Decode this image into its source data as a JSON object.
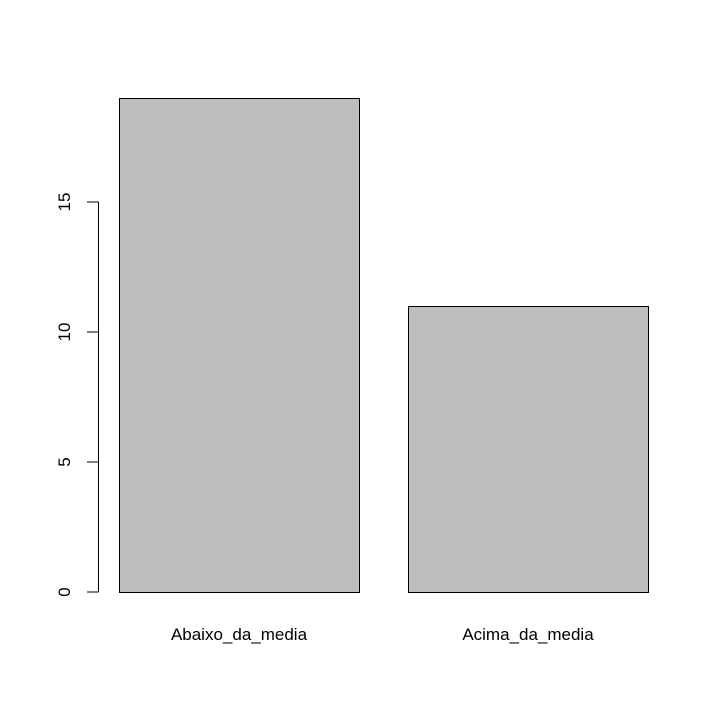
{
  "chart_data": {
    "type": "bar",
    "title": "",
    "xlabel": "",
    "ylabel": "",
    "categories": [
      "Abaixo_da_media",
      "Acima_da_media"
    ],
    "values": [
      19,
      11
    ],
    "ylim": [
      0,
      19
    ],
    "yticks": [
      "0",
      "5",
      "10",
      "15"
    ],
    "grid": false,
    "bar_color": "#bebebe",
    "bar_border_color": "#000000"
  }
}
